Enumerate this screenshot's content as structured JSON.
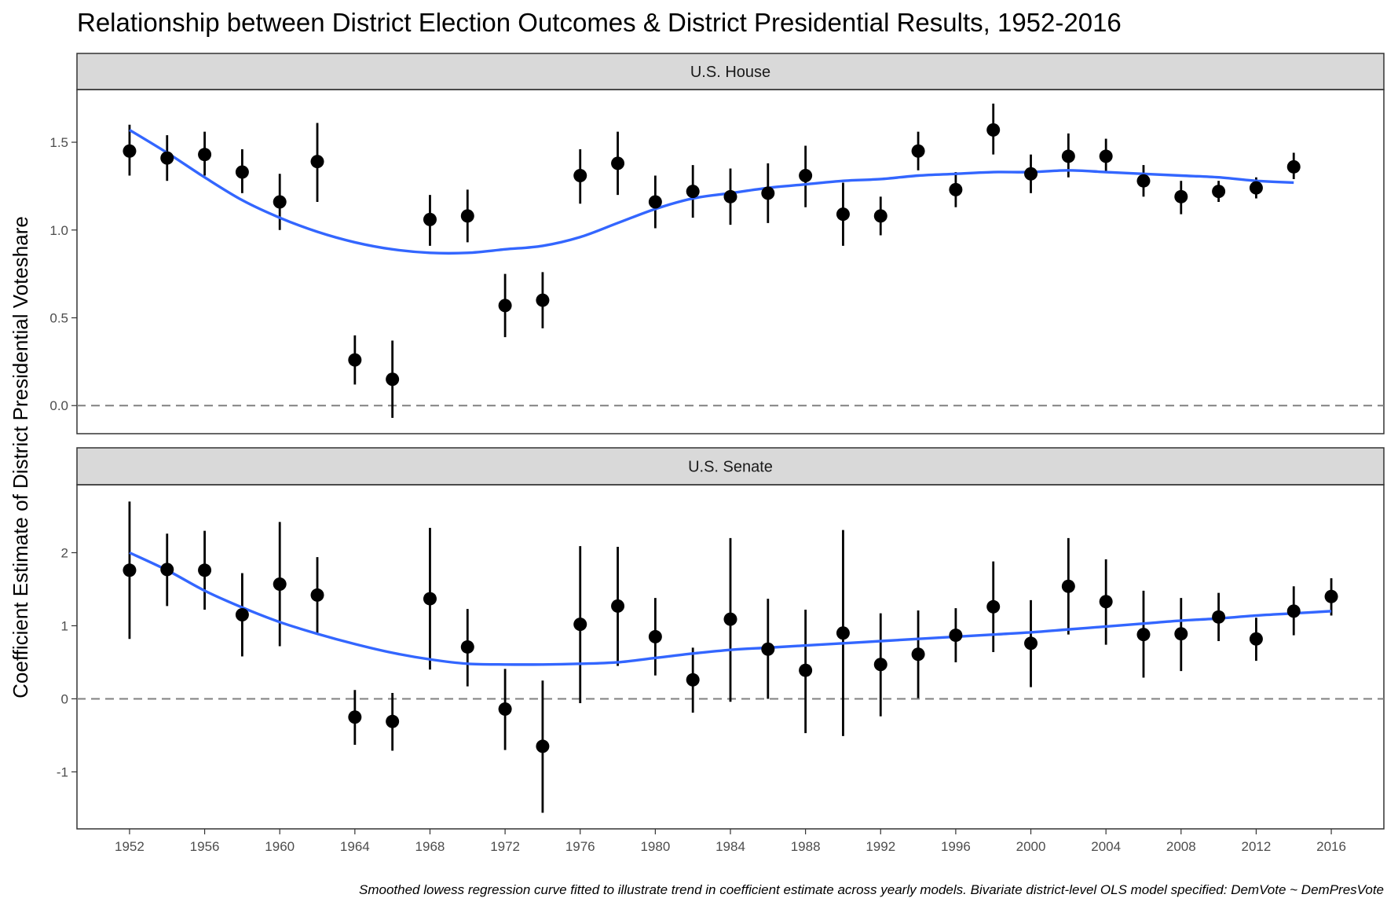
{
  "chart_data": {
    "type": "scatter",
    "title": "Relationship between District Election Outcomes & District Presidential Results, 1952-2016",
    "ylabel": "Coefficient Estimate of District Presidential Voteshare",
    "xlabel": "",
    "caption": "Smoothed lowess regression curve fitted to illustrate trend in coefficient estimate across yearly models. Bivariate district-level OLS model specified: DemVote ~ DemPresVote",
    "x_ticks": [
      "1952",
      "1956",
      "1960",
      "1964",
      "1968",
      "1972",
      "1976",
      "1980",
      "1984",
      "1988",
      "1992",
      "1996",
      "2000",
      "2004",
      "2008",
      "2012",
      "2016"
    ],
    "xlim": [
      1949.2,
      2018.8
    ],
    "reference_line": 0,
    "colors": {
      "smooth": "#3366ff",
      "points": "#000000",
      "strip_bg": "#d9d9d9",
      "reference": "#808080"
    },
    "panels": [
      {
        "name": "U.S. House",
        "ylim": [
          -0.16,
          1.8
        ],
        "y_ticks": [
          "0.0",
          "0.5",
          "1.0",
          "1.5"
        ],
        "x": [
          1952,
          1954,
          1956,
          1958,
          1960,
          1962,
          1964,
          1966,
          1968,
          1970,
          1972,
          1974,
          1976,
          1978,
          1980,
          1982,
          1984,
          1986,
          1988,
          1990,
          1992,
          1994,
          1996,
          1998,
          2000,
          2002,
          2004,
          2006,
          2008,
          2010,
          2012,
          2014
        ],
        "estimate": [
          1.45,
          1.41,
          1.43,
          1.33,
          1.16,
          1.39,
          0.26,
          0.15,
          1.06,
          1.08,
          0.57,
          0.6,
          1.31,
          1.38,
          1.16,
          1.22,
          1.19,
          1.21,
          1.31,
          1.09,
          1.08,
          1.45,
          1.23,
          1.57,
          1.32,
          1.42,
          1.42,
          1.28,
          1.19,
          1.22,
          1.24,
          1.36
        ],
        "lower": [
          1.31,
          1.28,
          1.31,
          1.21,
          1.0,
          1.16,
          0.12,
          -0.07,
          0.91,
          0.93,
          0.39,
          0.44,
          1.15,
          1.2,
          1.01,
          1.07,
          1.03,
          1.04,
          1.13,
          0.91,
          0.97,
          1.34,
          1.13,
          1.43,
          1.21,
          1.3,
          1.33,
          1.19,
          1.09,
          1.16,
          1.18,
          1.29
        ],
        "upper": [
          1.6,
          1.54,
          1.56,
          1.46,
          1.32,
          1.61,
          0.4,
          0.37,
          1.2,
          1.23,
          0.75,
          0.76,
          1.46,
          1.56,
          1.31,
          1.37,
          1.35,
          1.38,
          1.48,
          1.27,
          1.19,
          1.56,
          1.33,
          1.72,
          1.43,
          1.55,
          1.52,
          1.37,
          1.28,
          1.28,
          1.3,
          1.44
        ],
        "smooth_x": [
          1952,
          1954,
          1956,
          1958,
          1960,
          1962,
          1964,
          1966,
          1968,
          1970,
          1972,
          1974,
          1976,
          1978,
          1980,
          1982,
          1984,
          1986,
          1988,
          1990,
          1992,
          1994,
          1996,
          1998,
          2000,
          2002,
          2004,
          2006,
          2008,
          2010,
          2012,
          2014
        ],
        "smooth_y": [
          1.57,
          1.44,
          1.3,
          1.17,
          1.07,
          0.99,
          0.93,
          0.89,
          0.87,
          0.87,
          0.89,
          0.91,
          0.96,
          1.04,
          1.12,
          1.18,
          1.21,
          1.24,
          1.26,
          1.28,
          1.29,
          1.31,
          1.32,
          1.33,
          1.33,
          1.34,
          1.33,
          1.32,
          1.31,
          1.3,
          1.28,
          1.27
        ]
      },
      {
        "name": "U.S. Senate",
        "ylim": [
          -1.78,
          2.93
        ],
        "y_ticks": [
          "-1",
          "0",
          "1",
          "2"
        ],
        "x": [
          1952,
          1954,
          1956,
          1958,
          1960,
          1962,
          1964,
          1966,
          1968,
          1970,
          1972,
          1974,
          1976,
          1978,
          1980,
          1982,
          1984,
          1986,
          1988,
          1990,
          1992,
          1994,
          1996,
          1998,
          2000,
          2002,
          2004,
          2006,
          2008,
          2010,
          2012,
          2014,
          2016
        ],
        "estimate": [
          1.76,
          1.77,
          1.76,
          1.15,
          1.57,
          1.42,
          -0.25,
          -0.31,
          1.37,
          0.71,
          -0.14,
          -0.65,
          1.02,
          1.27,
          0.85,
          0.26,
          1.09,
          0.68,
          0.39,
          0.9,
          0.47,
          0.61,
          0.87,
          1.26,
          0.76,
          1.54,
          1.33,
          0.88,
          0.89,
          1.12,
          0.82,
          1.2,
          1.4
        ],
        "lower": [
          0.82,
          1.27,
          1.22,
          0.58,
          0.72,
          0.88,
          -0.63,
          -0.71,
          0.4,
          0.17,
          -0.7,
          -1.56,
          -0.06,
          0.45,
          0.32,
          -0.19,
          -0.04,
          0.0,
          -0.47,
          -0.51,
          -0.24,
          0.01,
          0.5,
          0.64,
          0.16,
          0.88,
          0.74,
          0.29,
          0.38,
          0.79,
          0.52,
          0.87,
          1.14
        ],
        "upper": [
          2.7,
          2.26,
          2.3,
          1.72,
          2.42,
          1.94,
          0.12,
          0.08,
          2.34,
          1.23,
          0.41,
          0.25,
          2.09,
          2.08,
          1.38,
          0.7,
          2.2,
          1.37,
          1.22,
          2.31,
          1.17,
          1.21,
          1.24,
          1.88,
          1.35,
          2.2,
          1.91,
          1.48,
          1.38,
          1.45,
          1.11,
          1.54,
          1.65
        ],
        "smooth_x": [
          1952,
          1954,
          1956,
          1958,
          1960,
          1962,
          1964,
          1966,
          1968,
          1970,
          1972,
          1974,
          1976,
          1978,
          1980,
          1982,
          1984,
          1986,
          1988,
          1990,
          1992,
          1994,
          1996,
          1998,
          2000,
          2002,
          2004,
          2006,
          2008,
          2010,
          2012,
          2014,
          2016
        ],
        "smooth_y": [
          2.0,
          1.76,
          1.48,
          1.25,
          1.05,
          0.89,
          0.75,
          0.63,
          0.54,
          0.48,
          0.47,
          0.47,
          0.48,
          0.5,
          0.56,
          0.62,
          0.67,
          0.7,
          0.73,
          0.76,
          0.79,
          0.82,
          0.85,
          0.88,
          0.91,
          0.95,
          0.99,
          1.03,
          1.07,
          1.1,
          1.14,
          1.17,
          1.2
        ]
      }
    ]
  }
}
